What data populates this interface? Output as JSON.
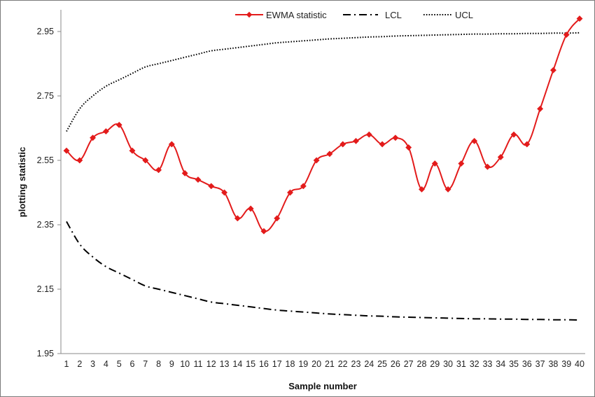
{
  "chart_data": {
    "type": "line",
    "xlabel": "Sample number",
    "ylabel": "plotting statistic",
    "ylim": [
      1.95,
      3.0
    ],
    "yticks": [
      "1.95",
      "2.15",
      "2.35",
      "2.55",
      "2.75",
      "2.95"
    ],
    "x": [
      1,
      2,
      3,
      4,
      5,
      6,
      7,
      8,
      9,
      10,
      11,
      12,
      13,
      14,
      15,
      16,
      17,
      18,
      19,
      20,
      21,
      22,
      23,
      24,
      25,
      26,
      27,
      28,
      29,
      30,
      31,
      32,
      33,
      34,
      35,
      36,
      37,
      38,
      39,
      40
    ],
    "legend_position": "top",
    "grid": false,
    "series": [
      {
        "name": "EWMA statistic",
        "style": "solid-diamond-markers",
        "color": "#e31b1b",
        "values": [
          2.58,
          2.55,
          2.62,
          2.64,
          2.66,
          2.58,
          2.55,
          2.52,
          2.6,
          2.51,
          2.49,
          2.47,
          2.45,
          2.37,
          2.4,
          2.33,
          2.37,
          2.45,
          2.47,
          2.55,
          2.57,
          2.6,
          2.61,
          2.63,
          2.6,
          2.62,
          2.59,
          2.46,
          2.54,
          2.46,
          2.54,
          2.61,
          2.53,
          2.56,
          2.63,
          2.6,
          2.71,
          2.83,
          2.94,
          2.99
        ]
      },
      {
        "name": "LCL",
        "style": "dash-dot",
        "color": "#000000",
        "values": [
          2.36,
          2.29,
          2.25,
          2.22,
          2.2,
          2.18,
          2.16,
          2.15,
          2.14,
          2.13,
          2.12,
          2.11,
          2.105,
          2.1,
          2.095,
          2.09,
          2.085,
          2.082,
          2.079,
          2.076,
          2.073,
          2.071,
          2.069,
          2.067,
          2.066,
          2.064,
          2.063,
          2.062,
          2.061,
          2.06,
          2.059,
          2.058,
          2.058,
          2.057,
          2.057,
          2.056,
          2.056,
          2.055,
          2.055,
          2.054
        ]
      },
      {
        "name": "UCL",
        "style": "dotted",
        "color": "#000000",
        "values": [
          2.64,
          2.71,
          2.75,
          2.78,
          2.8,
          2.82,
          2.84,
          2.85,
          2.86,
          2.87,
          2.88,
          2.89,
          2.895,
          2.9,
          2.905,
          2.91,
          2.915,
          2.918,
          2.921,
          2.924,
          2.927,
          2.929,
          2.931,
          2.933,
          2.934,
          2.936,
          2.937,
          2.938,
          2.939,
          2.94,
          2.941,
          2.942,
          2.942,
          2.943,
          2.943,
          2.944,
          2.944,
          2.945,
          2.945,
          2.946
        ]
      }
    ]
  }
}
